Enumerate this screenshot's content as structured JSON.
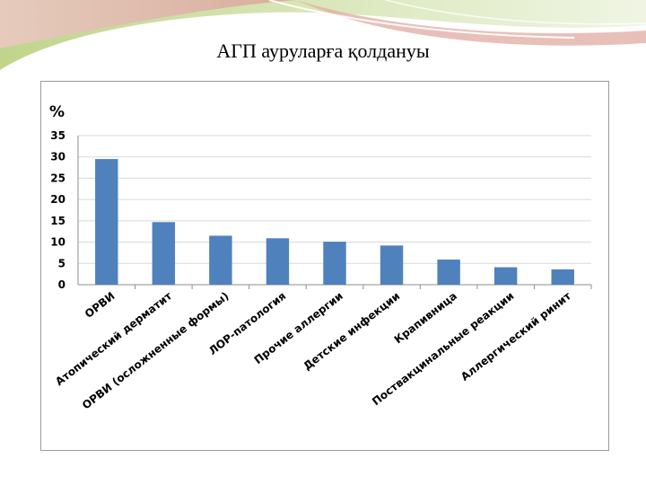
{
  "slide": {
    "title": "АГП ауруларға қолдануы"
  },
  "colors": {
    "bar": "#4f81bd",
    "grid": "#d9d9d9",
    "axis": "#8c8c8c",
    "decor_green": "#c9dc9a",
    "decor_pink": "#e3b7b1"
  },
  "chart_data": {
    "type": "bar",
    "title": "",
    "xlabel": "",
    "ylabel": "%",
    "ylim": [
      0,
      35
    ],
    "yticks": [
      0,
      5,
      10,
      15,
      20,
      25,
      30,
      35
    ],
    "grid": true,
    "categories": [
      "ОРВИ",
      "Атопический дерматит",
      "ОРВИ (осложненные формы)",
      "ЛОР-патология",
      "Прочие аллергии",
      "Детские инфекции",
      "Крапивница",
      "Поствакцинальные реакции",
      "Аллергический ринит"
    ],
    "values": [
      29.5,
      14.7,
      11.5,
      10.9,
      10.1,
      9.2,
      5.9,
      4.1,
      3.6
    ]
  }
}
